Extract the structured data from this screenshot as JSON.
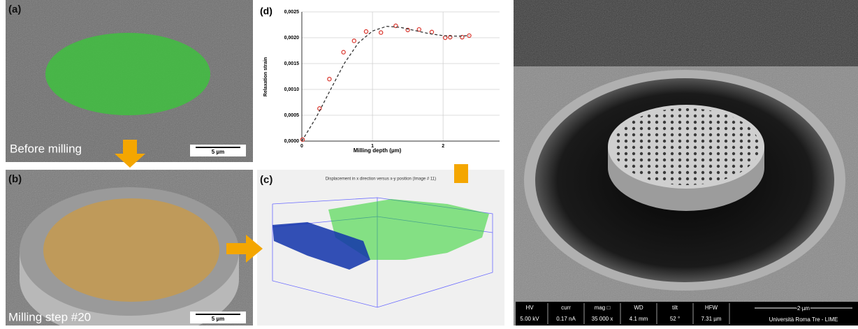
{
  "panels": {
    "a": {
      "label": "(a)",
      "caption": "Before milling",
      "scale": "5 µm"
    },
    "b": {
      "label": "(b)",
      "caption": "Milling step #20",
      "scale": "5 µm"
    },
    "c": {
      "label": "(c)",
      "title": "Displacement in x direction versus x-y position (Image # 11)"
    }
  },
  "chart_data": {
    "type": "scatter",
    "label": "(d)",
    "x_label": "Milling depth (µm)",
    "y_label": "Relaxation strain",
    "xlim": [
      0,
      2.8
    ],
    "ylim": [
      0,
      0.0025
    ],
    "grid": true,
    "xticks": [
      0,
      1,
      2
    ],
    "yticks": [
      {
        "value": 0,
        "label": "0,0000"
      },
      {
        "value": 0.0005,
        "label": "0,0005"
      },
      {
        "value": 0.001,
        "label": "0,0010"
      },
      {
        "value": 0.0015,
        "label": "0,0015"
      },
      {
        "value": 0.002,
        "label": "0,0020"
      },
      {
        "value": 0.0025,
        "label": "0,0025"
      }
    ],
    "series": [
      {
        "style": "markers",
        "color": "#d9342b",
        "x": [
          0.01,
          0.25,
          0.39,
          0.59,
          0.74,
          0.91,
          1.12,
          1.33,
          1.5,
          1.66,
          1.84,
          2.03,
          2.1,
          2.27,
          2.37
        ],
        "values": [
          3e-05,
          0.00063,
          0.0012,
          0.00172,
          0.00194,
          0.00212,
          0.0021,
          0.00223,
          0.00215,
          0.00216,
          0.00211,
          0.002,
          0.00201,
          0.00201,
          0.00204
        ]
      },
      {
        "style": "dashed",
        "color": "#333333",
        "x": [
          0,
          0.2,
          0.4,
          0.6,
          0.8,
          1.0,
          1.2,
          1.4,
          1.6,
          1.8,
          2.0,
          2.2,
          2.37
        ],
        "values": [
          0,
          0.00045,
          0.00098,
          0.0015,
          0.0019,
          0.00213,
          0.00222,
          0.0022,
          0.00214,
          0.00208,
          0.00204,
          0.00203,
          0.00204
        ]
      }
    ]
  },
  "sem": {
    "infobar": [
      {
        "header": "HV",
        "value": "5.00 kV"
      },
      {
        "header": "curr",
        "value": "0.17 nA"
      },
      {
        "header": "mag □",
        "value": "35 000 x"
      },
      {
        "header": "WD",
        "value": "4.1 mm"
      },
      {
        "header": "tilt",
        "value": "52 °"
      },
      {
        "header": "HFW",
        "value": "7.31 µm"
      }
    ],
    "scale": "2 µm",
    "institution": "Università Roma Tre - LIME"
  }
}
